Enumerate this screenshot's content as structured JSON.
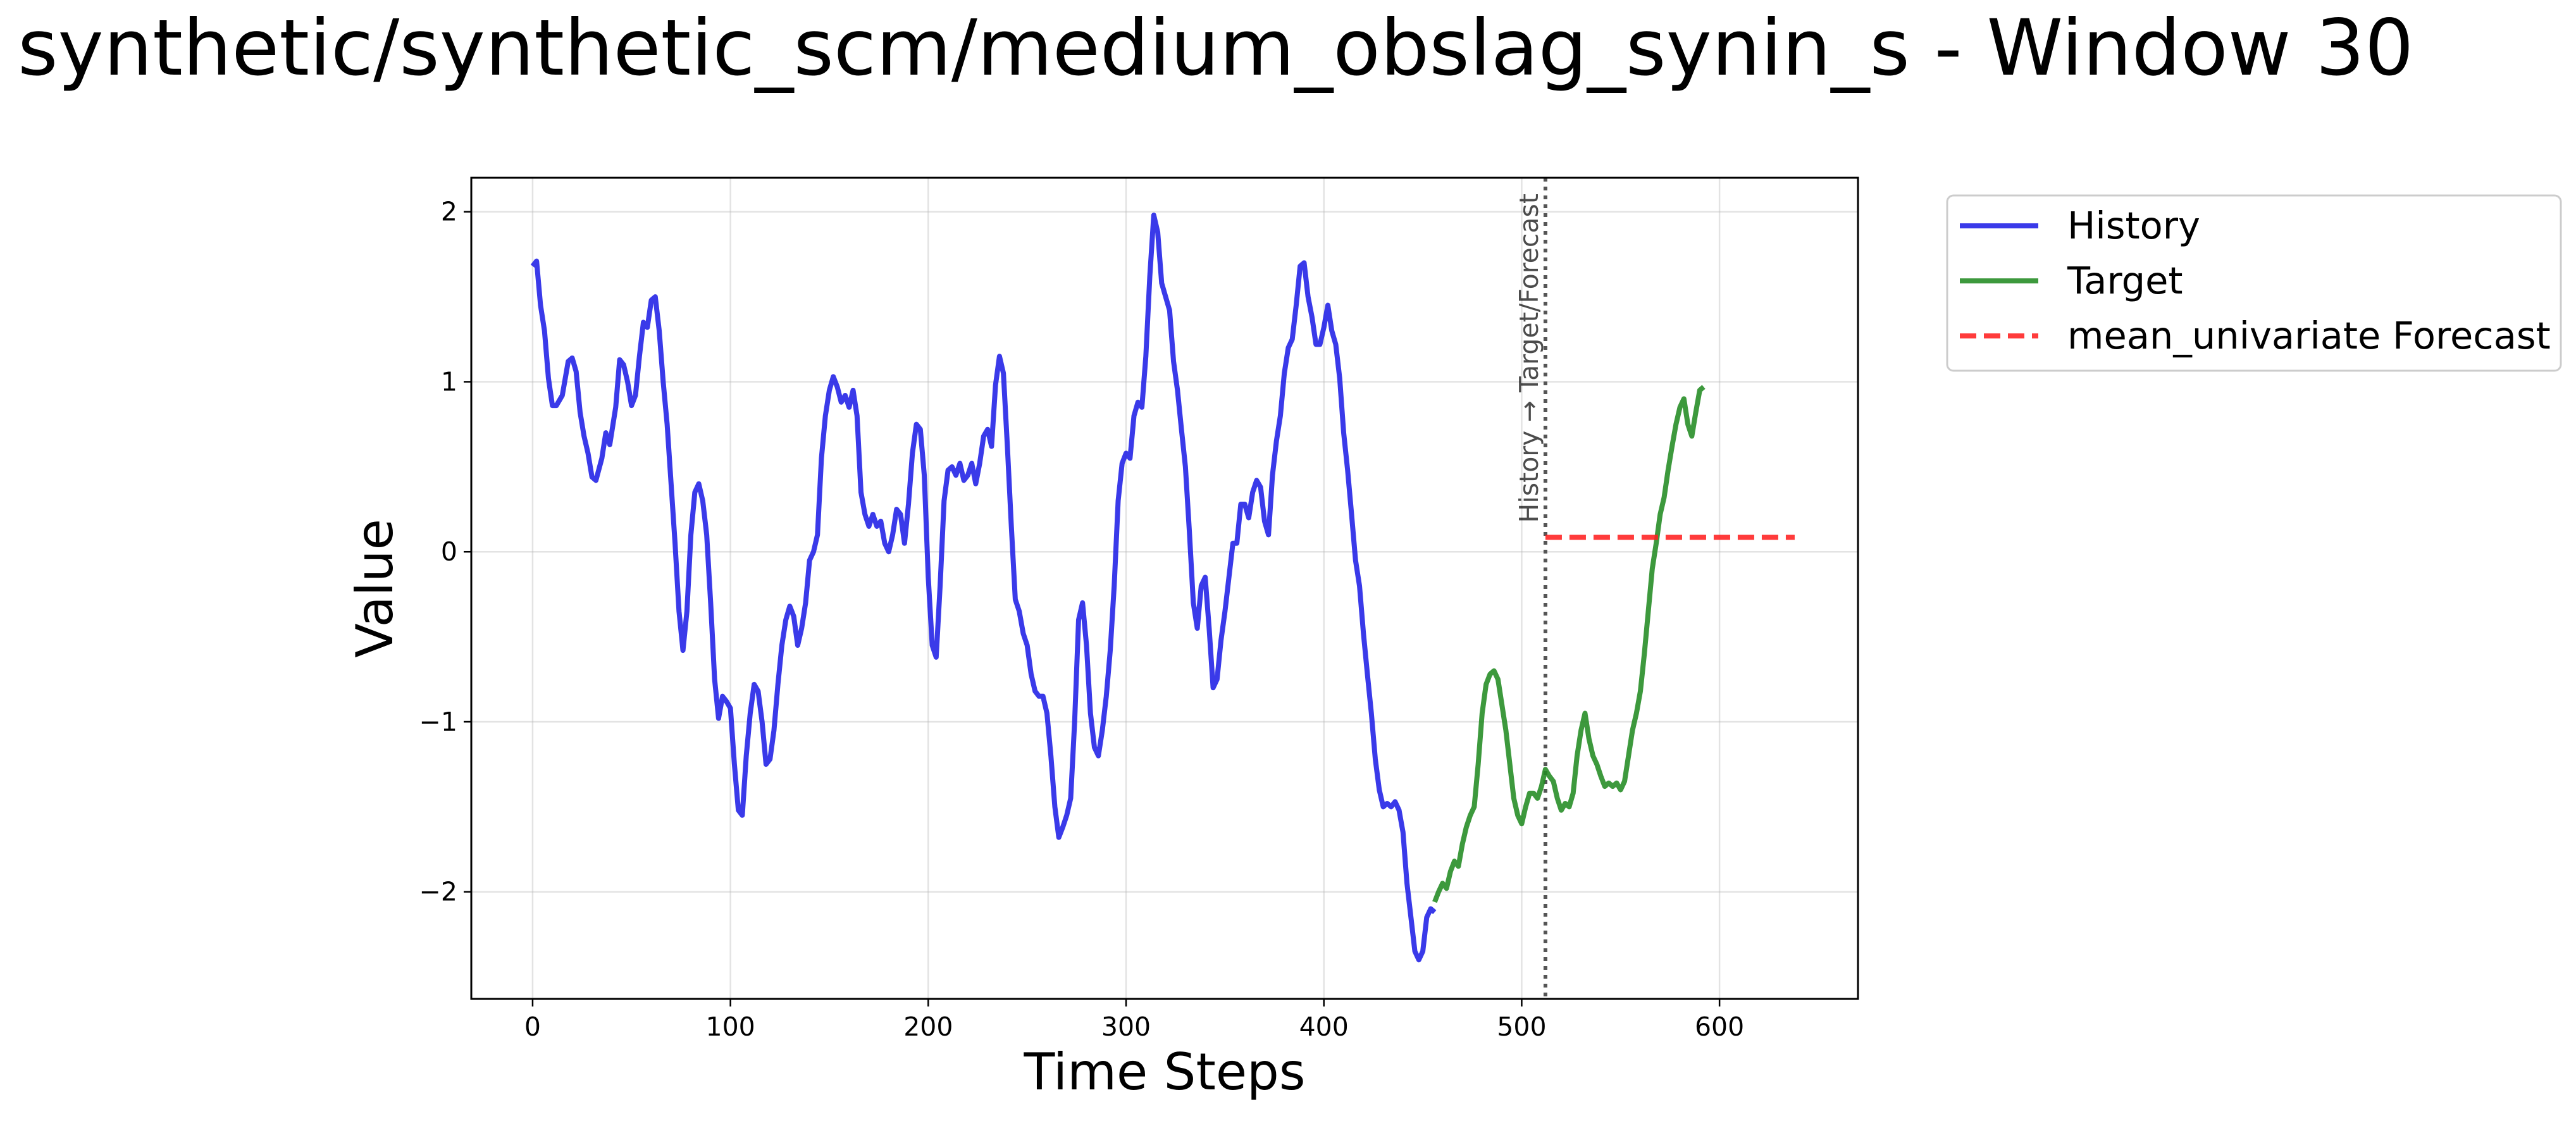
{
  "chart_data": {
    "type": "line",
    "title": "synthetic/synthetic_scm/medium_obslag_synin_s - Window 30",
    "xlabel": "Time Steps",
    "ylabel": "Value",
    "xlim": [
      -31,
      670
    ],
    "ylim": [
      -2.63,
      2.2
    ],
    "x_ticks": [
      0,
      100,
      200,
      300,
      400,
      500,
      600
    ],
    "x_tick_labels": [
      "0",
      "100",
      "200",
      "300",
      "400",
      "500",
      "600"
    ],
    "y_ticks": [
      -2,
      -1,
      0,
      1,
      2
    ],
    "y_tick_labels": [
      "−2",
      "−1",
      "0",
      "1",
      "2"
    ],
    "grid": true,
    "legend_position": "outside-top-right",
    "split_marker": {
      "x": 512,
      "label": "History → Target/Forecast",
      "color": "#555555"
    },
    "series": [
      {
        "name": "History",
        "color": "#1f1fe6",
        "style": "solid",
        "points": [
          [
            0,
            1.68
          ],
          [
            2,
            1.71
          ],
          [
            4,
            1.45
          ],
          [
            6,
            1.3
          ],
          [
            8,
            1.02
          ],
          [
            10,
            0.86
          ],
          [
            12,
            0.86
          ],
          [
            15,
            0.92
          ],
          [
            18,
            1.12
          ],
          [
            20,
            1.14
          ],
          [
            22,
            1.06
          ],
          [
            24,
            0.82
          ],
          [
            26,
            0.68
          ],
          [
            28,
            0.58
          ],
          [
            30,
            0.44
          ],
          [
            32,
            0.42
          ],
          [
            35,
            0.55
          ],
          [
            37,
            0.7
          ],
          [
            39,
            0.63
          ],
          [
            42,
            0.85
          ],
          [
            44,
            1.13
          ],
          [
            46,
            1.1
          ],
          [
            48,
            1.0
          ],
          [
            50,
            0.86
          ],
          [
            52,
            0.92
          ],
          [
            54,
            1.15
          ],
          [
            56,
            1.35
          ],
          [
            58,
            1.32
          ],
          [
            60,
            1.48
          ],
          [
            62,
            1.5
          ],
          [
            64,
            1.3
          ],
          [
            66,
            1.0
          ],
          [
            68,
            0.75
          ],
          [
            70,
            0.4
          ],
          [
            72,
            0.05
          ],
          [
            74,
            -0.35
          ],
          [
            76,
            -0.58
          ],
          [
            78,
            -0.35
          ],
          [
            80,
            0.1
          ],
          [
            82,
            0.35
          ],
          [
            84,
            0.4
          ],
          [
            86,
            0.3
          ],
          [
            88,
            0.1
          ],
          [
            90,
            -0.3
          ],
          [
            92,
            -0.75
          ],
          [
            94,
            -0.98
          ],
          [
            96,
            -0.85
          ],
          [
            98,
            -0.88
          ],
          [
            100,
            -0.92
          ],
          [
            102,
            -1.25
          ],
          [
            104,
            -1.52
          ],
          [
            106,
            -1.55
          ],
          [
            108,
            -1.2
          ],
          [
            110,
            -0.95
          ],
          [
            112,
            -0.78
          ],
          [
            114,
            -0.82
          ],
          [
            116,
            -1.0
          ],
          [
            118,
            -1.25
          ],
          [
            120,
            -1.22
          ],
          [
            122,
            -1.05
          ],
          [
            124,
            -0.78
          ],
          [
            126,
            -0.55
          ],
          [
            128,
            -0.4
          ],
          [
            130,
            -0.32
          ],
          [
            132,
            -0.38
          ],
          [
            134,
            -0.55
          ],
          [
            136,
            -0.45
          ],
          [
            138,
            -0.3
          ],
          [
            140,
            -0.05
          ],
          [
            142,
            0.0
          ],
          [
            144,
            0.1
          ],
          [
            146,
            0.55
          ],
          [
            148,
            0.8
          ],
          [
            150,
            0.95
          ],
          [
            152,
            1.03
          ],
          [
            154,
            0.97
          ],
          [
            156,
            0.88
          ],
          [
            158,
            0.92
          ],
          [
            160,
            0.85
          ],
          [
            162,
            0.95
          ],
          [
            164,
            0.8
          ],
          [
            166,
            0.35
          ],
          [
            168,
            0.22
          ],
          [
            170,
            0.15
          ],
          [
            172,
            0.22
          ],
          [
            174,
            0.15
          ],
          [
            176,
            0.18
          ],
          [
            178,
            0.05
          ],
          [
            180,
            0.0
          ],
          [
            182,
            0.1
          ],
          [
            184,
            0.25
          ],
          [
            186,
            0.22
          ],
          [
            188,
            0.05
          ],
          [
            190,
            0.28
          ],
          [
            192,
            0.58
          ],
          [
            194,
            0.75
          ],
          [
            196,
            0.72
          ],
          [
            198,
            0.45
          ],
          [
            200,
            -0.15
          ],
          [
            202,
            -0.55
          ],
          [
            204,
            -0.62
          ],
          [
            206,
            -0.2
          ],
          [
            208,
            0.3
          ],
          [
            210,
            0.48
          ],
          [
            212,
            0.5
          ],
          [
            214,
            0.45
          ],
          [
            216,
            0.52
          ],
          [
            218,
            0.42
          ],
          [
            220,
            0.45
          ],
          [
            222,
            0.52
          ],
          [
            224,
            0.4
          ],
          [
            226,
            0.52
          ],
          [
            228,
            0.68
          ],
          [
            230,
            0.72
          ],
          [
            232,
            0.62
          ],
          [
            234,
            0.98
          ],
          [
            236,
            1.15
          ],
          [
            238,
            1.05
          ],
          [
            240,
            0.62
          ],
          [
            242,
            0.15
          ],
          [
            244,
            -0.28
          ],
          [
            246,
            -0.35
          ],
          [
            248,
            -0.48
          ],
          [
            250,
            -0.55
          ],
          [
            252,
            -0.72
          ],
          [
            254,
            -0.82
          ],
          [
            256,
            -0.85
          ],
          [
            258,
            -0.85
          ],
          [
            260,
            -0.95
          ],
          [
            262,
            -1.2
          ],
          [
            264,
            -1.5
          ],
          [
            266,
            -1.68
          ],
          [
            268,
            -1.62
          ],
          [
            270,
            -1.55
          ],
          [
            272,
            -1.45
          ],
          [
            274,
            -1.0
          ],
          [
            276,
            -0.4
          ],
          [
            278,
            -0.3
          ],
          [
            280,
            -0.55
          ],
          [
            282,
            -0.95
          ],
          [
            284,
            -1.15
          ],
          [
            286,
            -1.2
          ],
          [
            288,
            -1.05
          ],
          [
            290,
            -0.85
          ],
          [
            292,
            -0.58
          ],
          [
            294,
            -0.2
          ],
          [
            296,
            0.3
          ],
          [
            298,
            0.52
          ],
          [
            300,
            0.58
          ],
          [
            302,
            0.55
          ],
          [
            304,
            0.8
          ],
          [
            306,
            0.88
          ],
          [
            308,
            0.85
          ],
          [
            310,
            1.15
          ],
          [
            312,
            1.62
          ],
          [
            314,
            1.98
          ],
          [
            316,
            1.88
          ],
          [
            318,
            1.58
          ],
          [
            320,
            1.5
          ],
          [
            322,
            1.42
          ],
          [
            324,
            1.12
          ],
          [
            326,
            0.95
          ],
          [
            328,
            0.72
          ],
          [
            330,
            0.5
          ],
          [
            332,
            0.12
          ],
          [
            334,
            -0.3
          ],
          [
            336,
            -0.45
          ],
          [
            338,
            -0.2
          ],
          [
            340,
            -0.15
          ],
          [
            342,
            -0.45
          ],
          [
            344,
            -0.8
          ],
          [
            346,
            -0.75
          ],
          [
            348,
            -0.52
          ],
          [
            350,
            -0.35
          ],
          [
            352,
            -0.15
          ],
          [
            354,
            0.05
          ],
          [
            356,
            0.05
          ],
          [
            358,
            0.28
          ],
          [
            360,
            0.28
          ],
          [
            362,
            0.2
          ],
          [
            364,
            0.35
          ],
          [
            366,
            0.42
          ],
          [
            368,
            0.38
          ],
          [
            370,
            0.18
          ],
          [
            372,
            0.1
          ],
          [
            374,
            0.45
          ],
          [
            376,
            0.65
          ],
          [
            378,
            0.8
          ],
          [
            380,
            1.05
          ],
          [
            382,
            1.2
          ],
          [
            384,
            1.25
          ],
          [
            386,
            1.45
          ],
          [
            388,
            1.68
          ],
          [
            390,
            1.7
          ],
          [
            392,
            1.5
          ],
          [
            394,
            1.38
          ],
          [
            396,
            1.22
          ],
          [
            398,
            1.22
          ],
          [
            400,
            1.32
          ],
          [
            402,
            1.45
          ],
          [
            404,
            1.3
          ],
          [
            406,
            1.22
          ],
          [
            408,
            1.02
          ],
          [
            410,
            0.7
          ],
          [
            412,
            0.48
          ],
          [
            414,
            0.22
          ],
          [
            416,
            -0.05
          ],
          [
            418,
            -0.2
          ],
          [
            420,
            -0.48
          ],
          [
            422,
            -0.72
          ],
          [
            424,
            -0.95
          ],
          [
            426,
            -1.22
          ],
          [
            428,
            -1.4
          ],
          [
            430,
            -1.5
          ],
          [
            432,
            -1.48
          ],
          [
            434,
            -1.5
          ],
          [
            436,
            -1.47
          ],
          [
            438,
            -1.52
          ],
          [
            440,
            -1.65
          ],
          [
            442,
            -1.95
          ],
          [
            444,
            -2.15
          ],
          [
            446,
            -2.35
          ],
          [
            448,
            -2.4
          ],
          [
            450,
            -2.35
          ],
          [
            452,
            -2.15
          ],
          [
            454,
            -2.1
          ],
          [
            456,
            -2.12
          ]
        ]
      },
      {
        "name": "Target",
        "color": "#228b22",
        "style": "solid",
        "points": [
          [
            456,
            -2.06
          ],
          [
            458,
            -2.0
          ],
          [
            460,
            -1.95
          ],
          [
            462,
            -1.98
          ],
          [
            464,
            -1.88
          ],
          [
            466,
            -1.82
          ],
          [
            468,
            -1.85
          ],
          [
            470,
            -1.72
          ],
          [
            472,
            -1.62
          ],
          [
            474,
            -1.55
          ],
          [
            476,
            -1.5
          ],
          [
            478,
            -1.25
          ],
          [
            480,
            -0.95
          ],
          [
            482,
            -0.78
          ],
          [
            484,
            -0.72
          ],
          [
            486,
            -0.7
          ],
          [
            488,
            -0.75
          ],
          [
            490,
            -0.9
          ],
          [
            492,
            -1.05
          ],
          [
            494,
            -1.25
          ],
          [
            496,
            -1.45
          ],
          [
            498,
            -1.55
          ],
          [
            500,
            -1.6
          ],
          [
            502,
            -1.5
          ],
          [
            504,
            -1.42
          ],
          [
            506,
            -1.42
          ],
          [
            508,
            -1.45
          ],
          [
            510,
            -1.38
          ],
          [
            512,
            -1.28
          ],
          [
            514,
            -1.32
          ],
          [
            516,
            -1.35
          ],
          [
            518,
            -1.45
          ],
          [
            520,
            -1.52
          ],
          [
            522,
            -1.48
          ],
          [
            524,
            -1.5
          ],
          [
            526,
            -1.42
          ],
          [
            528,
            -1.2
          ],
          [
            530,
            -1.05
          ],
          [
            532,
            -0.95
          ],
          [
            534,
            -1.1
          ],
          [
            536,
            -1.2
          ],
          [
            538,
            -1.25
          ],
          [
            540,
            -1.32
          ],
          [
            542,
            -1.38
          ],
          [
            544,
            -1.36
          ],
          [
            546,
            -1.38
          ],
          [
            548,
            -1.36
          ],
          [
            550,
            -1.4
          ],
          [
            552,
            -1.35
          ],
          [
            554,
            -1.2
          ],
          [
            556,
            -1.05
          ],
          [
            558,
            -0.95
          ],
          [
            560,
            -0.82
          ],
          [
            562,
            -0.6
          ],
          [
            564,
            -0.35
          ],
          [
            566,
            -0.1
          ],
          [
            568,
            0.05
          ],
          [
            570,
            0.22
          ],
          [
            572,
            0.32
          ],
          [
            574,
            0.48
          ],
          [
            576,
            0.62
          ],
          [
            578,
            0.75
          ],
          [
            580,
            0.85
          ],
          [
            582,
            0.9
          ],
          [
            584,
            0.75
          ],
          [
            586,
            0.68
          ],
          [
            588,
            0.82
          ],
          [
            590,
            0.95
          ],
          [
            592,
            0.97
          ]
        ]
      },
      {
        "name": "mean_univariate Forecast",
        "color": "#ff2020",
        "style": "dashed",
        "points": [
          [
            512,
            0.085
          ],
          [
            638,
            0.085
          ]
        ]
      }
    ]
  }
}
